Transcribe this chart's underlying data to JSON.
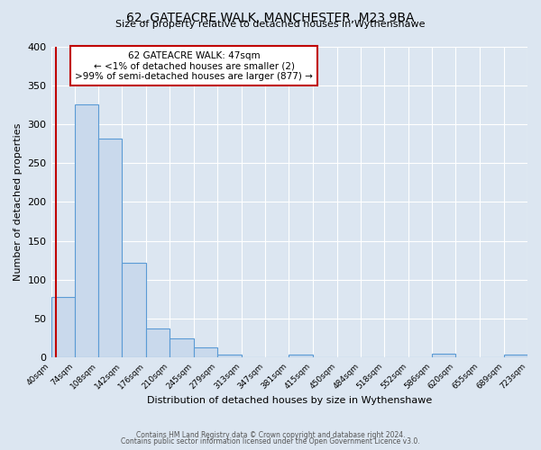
{
  "title_line1": "62, GATEACRE WALK, MANCHESTER, M23 9BA",
  "title_line2": "Size of property relative to detached houses in Wythenshawe",
  "xlabel": "Distribution of detached houses by size in Wythenshawe",
  "ylabel": "Number of detached properties",
  "footer_line1": "Contains HM Land Registry data © Crown copyright and database right 2024.",
  "footer_line2": "Contains public sector information licensed under the Open Government Licence v3.0.",
  "annotation_line1": "62 GATEACRE WALK: 47sqm",
  "annotation_line2": "← <1% of detached houses are smaller (2)",
  "annotation_line3": ">99% of semi-detached houses are larger (877) →",
  "property_size": 47,
  "bin_edges": [
    40,
    74,
    108,
    142,
    176,
    210,
    245,
    279,
    313,
    347,
    381,
    415,
    450,
    484,
    518,
    552,
    586,
    620,
    655,
    689,
    723
  ],
  "bin_counts": [
    78,
    325,
    281,
    122,
    37,
    25,
    13,
    4,
    0,
    0,
    4,
    0,
    0,
    0,
    0,
    0,
    5,
    0,
    0,
    4
  ],
  "bar_facecolor": "#c9d9ec",
  "bar_edgecolor": "#5b9bd5",
  "property_line_color": "#c00000",
  "annotation_box_edgecolor": "#c00000",
  "annotation_box_facecolor": "white",
  "background_color": "#dce6f1",
  "ylim": [
    0,
    400
  ],
  "yticks": [
    0,
    50,
    100,
    150,
    200,
    250,
    300,
    350,
    400
  ]
}
